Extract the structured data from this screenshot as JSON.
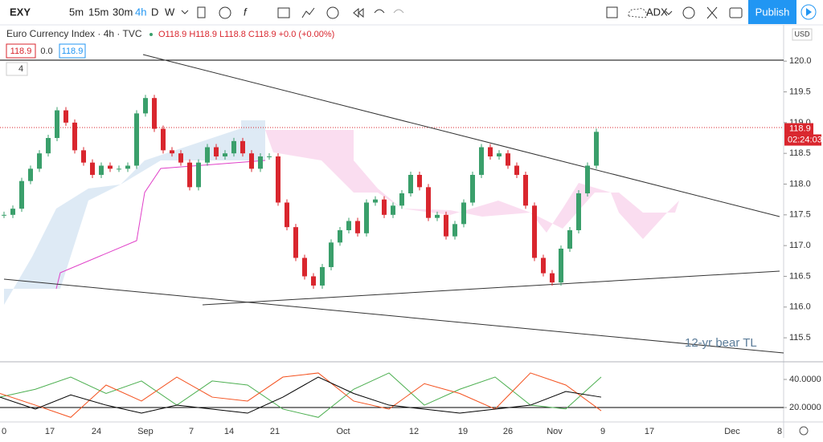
{
  "toolbar": {
    "symbol": "EXY",
    "intervals": [
      "5m",
      "15m",
      "30m",
      "4h",
      "D",
      "W"
    ],
    "indicator": "ADX",
    "publish": "Publish"
  },
  "legend": {
    "title": "Euro Currency Index · 4h · TVC",
    "ohlc": "O118.9 H118.9 L118.8 C118.9 +0.0 (+0.00%)",
    "inputs": [
      "118.9",
      "0.0",
      "118.9"
    ],
    "collapsed_count": "4"
  },
  "x_axis": {
    "labels": [
      "0",
      "17",
      "24",
      "Sep",
      "7",
      "14",
      "21",
      "Oct",
      "12",
      "19",
      "26",
      "Nov",
      "9",
      "17",
      "Dec",
      "8"
    ]
  },
  "chart_data": [
    {
      "type": "candlestick",
      "currency": "USD",
      "color_up": "#3a9f6b",
      "color_down": "#d9262e",
      "values": [
        117.5,
        117.6,
        118.05,
        118.25,
        118.5,
        118.75,
        119.2,
        119.0,
        118.55,
        118.35,
        118.15,
        118.3,
        118.25,
        118.25,
        118.3,
        119.15,
        119.4,
        118.9,
        118.55,
        118.5,
        118.35,
        117.95,
        118.35,
        118.6,
        118.45,
        118.5,
        118.7,
        118.5,
        118.25,
        118.45,
        118.45,
        117.7,
        117.3,
        116.8,
        116.5,
        116.35,
        116.65,
        117.05,
        117.25,
        117.4,
        117.2,
        117.7,
        117.75,
        117.5,
        117.65,
        117.85,
        118.15,
        117.95,
        117.45,
        117.5,
        117.15,
        117.35,
        117.7,
        118.15,
        118.6,
        118.45,
        118.5,
        118.3,
        118.15,
        117.65,
        116.8,
        116.55,
        116.4,
        116.95,
        117.25,
        117.85,
        118.3,
        118.85
      ],
      "ylim": [
        115.11,
        120.59
      ],
      "yticks": [
        {
          "value": 115.5,
          "label": "115.5"
        },
        {
          "value": 116,
          "label": "116.0"
        },
        {
          "value": 116.5,
          "label": "116.5"
        },
        {
          "value": 117,
          "label": "117.0"
        },
        {
          "value": 117.5,
          "label": "117.5"
        },
        {
          "value": 118,
          "label": "118.0"
        },
        {
          "value": 118.5,
          "label": "118.5"
        },
        {
          "value": 119,
          "label": "119.0"
        },
        {
          "value": 119.5,
          "label": "119.5"
        },
        {
          "value": 120,
          "label": "120.0"
        }
      ],
      "current_price": 118.9,
      "countdown": "02:24:03",
      "annotation": "12-yr bear TL"
    },
    {
      "type": "line",
      "series": [
        {
          "name": "+DI",
          "color": "#4caf50",
          "values": [
            27.4,
            33,
            41.7,
            30,
            38.9,
            21.7,
            38.9,
            36,
            18.9,
            13,
            33,
            44.6,
            21.7,
            33,
            41.7,
            21.7,
            19,
            41.7
          ]
        },
        {
          "name": "-DI",
          "color": "#f4511e",
          "values": [
            30,
            21.7,
            13,
            36,
            24.6,
            41.7,
            27.4,
            24.6,
            41.7,
            44.6,
            24.6,
            18.9,
            37,
            30,
            18.9,
            44.6,
            36,
            17.7
          ]
        },
        {
          "name": "ADX",
          "color": "#000000",
          "values": [
            27.4,
            18.9,
            29,
            21.7,
            16,
            21.7,
            18.9,
            16,
            27.4,
            41.7,
            30,
            21.7,
            18.9,
            16,
            18.9,
            21.7,
            31.4,
            27.4
          ]
        }
      ],
      "ylim": [
        10.3,
        52
      ],
      "yticks": [
        {
          "value": 40,
          "label": "40.0000"
        },
        {
          "value": 20,
          "label": "20.0000"
        }
      ]
    }
  ]
}
